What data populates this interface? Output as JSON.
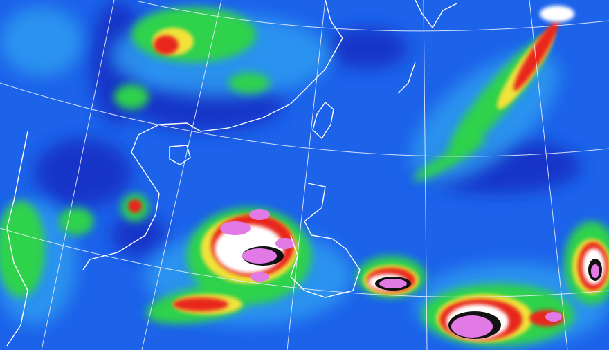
{
  "image": {
    "kind": "enhanced infrared satellite image",
    "colors": {
      "ocean_clear": "#1c63ea",
      "clear_dark": "#1436c8",
      "thin_cloud": "#2f9bf0",
      "low_cloud": "#2fd24c",
      "mid_cloud": "#f2e23a",
      "high_cloud": "#e8261e",
      "very_high_cloud": "#ffffff",
      "deep_convection": "#111111",
      "overshooting_top": "#e27ae6",
      "coastline": "#ffffff",
      "graticule": "#e8eefc"
    }
  }
}
